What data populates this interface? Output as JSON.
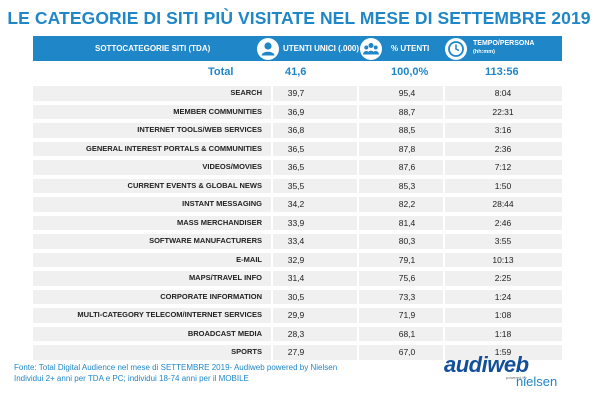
{
  "title": "LE CATEGORIE DI SITI PIÙ VISITATE NEL MESE DI SETTEMBRE 2019",
  "header": {
    "col_category": "SOTTOCATEGORIE SITI  (TDA)",
    "col_users": "UTENTI UNICI (.000)",
    "col_percent": "% UTENTI",
    "col_time_line1": "TEMPO/PERSONA",
    "col_time_line2": "(hh:mm)",
    "icons": [
      "user-icon",
      "group-icon",
      "clock-icon"
    ]
  },
  "total": {
    "label": "Total",
    "users": "41,6",
    "percent": "100,0%",
    "time": "113:56"
  },
  "rows": [
    {
      "name": "SEARCH",
      "users": "39,7",
      "percent": "95,4",
      "time": "8:04"
    },
    {
      "name": "MEMBER COMMUNITIES",
      "users": "36,9",
      "percent": "88,7",
      "time": "22:31"
    },
    {
      "name": "INTERNET TOOLS/WEB SERVICES",
      "users": "36,8",
      "percent": "88,5",
      "time": "3:16"
    },
    {
      "name": "GENERAL INTEREST PORTALS & COMMUNITIES",
      "users": "36,5",
      "percent": "87,8",
      "time": "2:36"
    },
    {
      "name": "VIDEOS/MOVIES",
      "users": "36,5",
      "percent": "87,6",
      "time": "7:12"
    },
    {
      "name": "CURRENT EVENTS & GLOBAL NEWS",
      "users": "35,5",
      "percent": "85,3",
      "time": "1:50"
    },
    {
      "name": "INSTANT MESSAGING",
      "users": "34,2",
      "percent": "82,2",
      "time": "28:44"
    },
    {
      "name": "MASS MERCHANDISER",
      "users": "33,9",
      "percent": "81,4",
      "time": "2:46"
    },
    {
      "name": "SOFTWARE MANUFACTURERS",
      "users": "33,4",
      "percent": "80,3",
      "time": "3:55"
    },
    {
      "name": "E-MAIL",
      "users": "32,9",
      "percent": "79,1",
      "time": "10:13"
    },
    {
      "name": "MAPS/TRAVEL INFO",
      "users": "31,4",
      "percent": "75,6",
      "time": "2:25"
    },
    {
      "name": "CORPORATE INFORMATION",
      "users": "30,5",
      "percent": "73,3",
      "time": "1:24"
    },
    {
      "name": "MULTI-CATEGORY TELECOM/INTERNET SERVICES",
      "users": "29,9",
      "percent": "71,9",
      "time": "1:08"
    },
    {
      "name": "BROADCAST MEDIA",
      "users": "28,3",
      "percent": "68,1",
      "time": "1:18"
    },
    {
      "name": "SPORTS",
      "users": "27,9",
      "percent": "67,0",
      "time": "1:59"
    }
  ],
  "footnote": {
    "line1": "Fonte: Total Digital Audience nel mese di SETTEMBRE 2019- Audiweb powered by Nielsen",
    "line2": "Individui 2+ anni per TDA e PC; individui 18-74 anni per il MOBILE"
  },
  "logo": {
    "brand": "audiweb",
    "powered": "powered by",
    "partner": "nielsen"
  },
  "colors": {
    "accent": "#1f86c8",
    "row_bg": "#f0f0f0",
    "logo_dark": "#14509a"
  }
}
